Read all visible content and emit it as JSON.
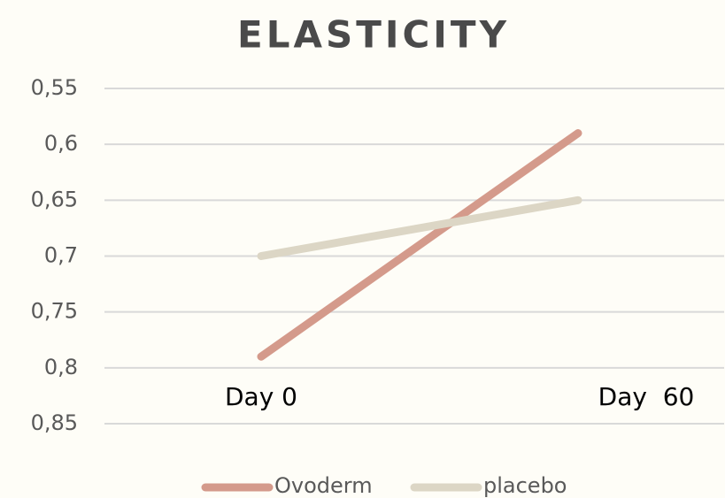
{
  "chart_data": {
    "type": "line",
    "title": "ELASTICITY",
    "categories": [
      "Day 0",
      "Day  60"
    ],
    "series": [
      {
        "name": "Ovoderm",
        "color": "#d49a8b",
        "values": [
          0.79,
          0.59
        ]
      },
      {
        "name": "placebo",
        "color": "#dcd6c5",
        "values": [
          0.7,
          0.65
        ]
      }
    ],
    "ylim": [
      0.55,
      0.85
    ],
    "inverted_y": true,
    "yticks": [
      {
        "value": 0.55,
        "label": "0,55"
      },
      {
        "value": 0.6,
        "label": "0,6"
      },
      {
        "value": 0.65,
        "label": "0,65"
      },
      {
        "value": 0.7,
        "label": "0,7"
      },
      {
        "value": 0.75,
        "label": "0,75"
      },
      {
        "value": 0.8,
        "label": "0,8"
      },
      {
        "value": 0.85,
        "label": "0,85"
      }
    ],
    "grid": true,
    "legend": "bottom"
  }
}
